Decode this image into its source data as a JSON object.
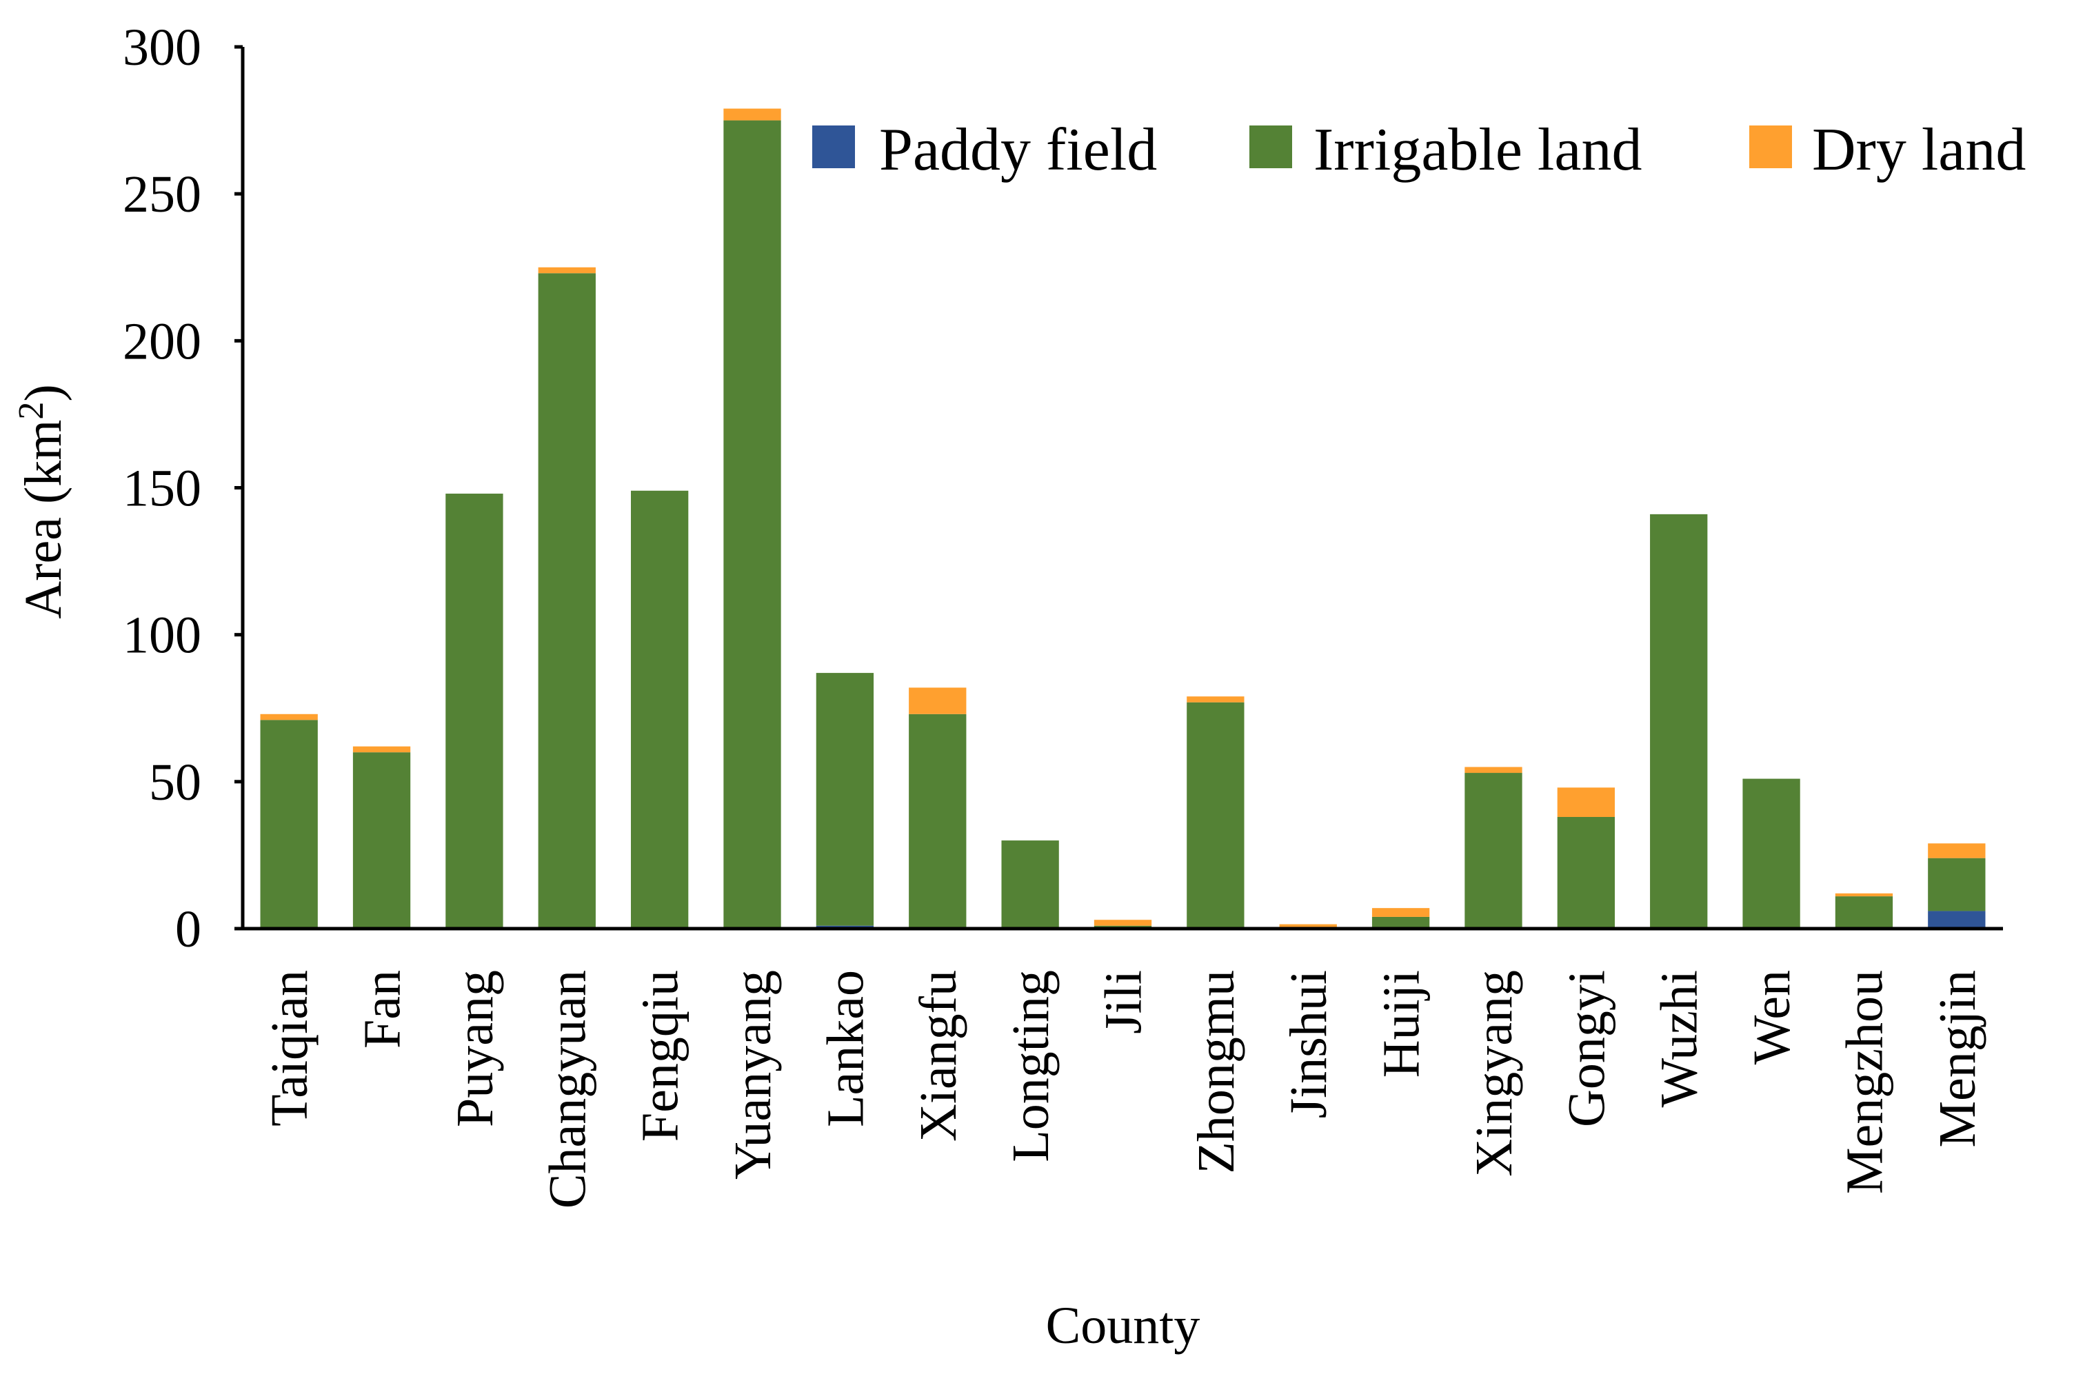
{
  "chart_data": {
    "type": "bar",
    "stacked": true,
    "xlabel": "County",
    "ylabel": "Area (km²)",
    "ylabel_main": "Area (km",
    "ylabel_sup": "2",
    "ylabel_close": ")",
    "ylim": [
      0,
      300
    ],
    "yticks": [
      0,
      50,
      100,
      150,
      200,
      250,
      300
    ],
    "grid": false,
    "legend_position": "top-right",
    "categories": [
      "Taiqian",
      "Fan",
      "Puyang",
      "Changyuan",
      "Fengqiu",
      "Yuanyang",
      "Lankao",
      "Xiangfu",
      "Longting",
      "Jili",
      "Zhongmu",
      "Jinshui",
      "Huiji",
      "Xingyang",
      "Gongyi",
      "Wuzhi",
      "Wen",
      "Mengzhou",
      "Mengjin"
    ],
    "series": [
      {
        "name": "Paddy field",
        "color": "#2f5597",
        "values": [
          0,
          0,
          0,
          0,
          0,
          0,
          1,
          0,
          0,
          0,
          0,
          0,
          0,
          0,
          0,
          0,
          0,
          0,
          6
        ]
      },
      {
        "name": "Irrigable land",
        "color": "#548235",
        "values": [
          71,
          60,
          148,
          223,
          149,
          275,
          86,
          73,
          30,
          1,
          77,
          0.5,
          4,
          53,
          38,
          141,
          51,
          11,
          18
        ]
      },
      {
        "name": "Dry land",
        "color": "#ffa02f",
        "values": [
          2,
          2,
          0,
          2,
          0,
          4,
          0,
          9,
          0,
          2,
          2,
          1,
          3,
          2,
          10,
          0,
          0,
          1,
          5
        ]
      }
    ]
  }
}
